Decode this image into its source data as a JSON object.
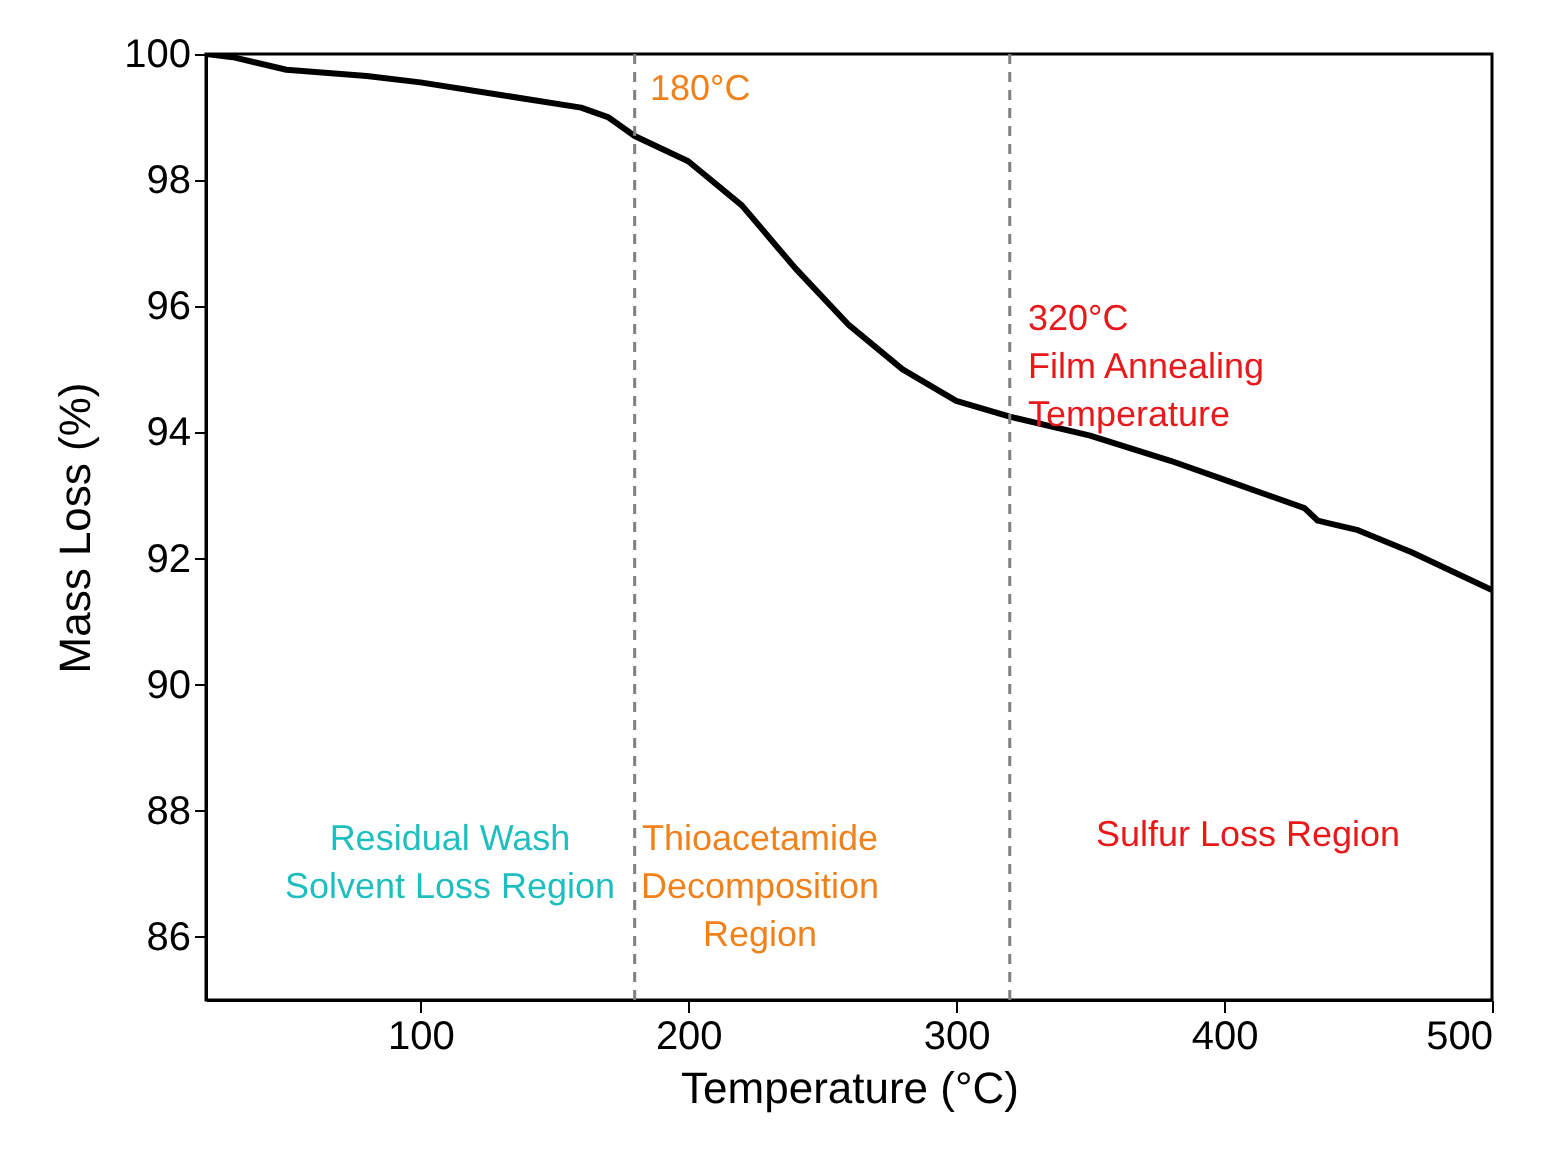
{
  "chart_data": {
    "type": "line",
    "xlabel": "Temperature (°C)",
    "ylabel": "Mass Loss (%)",
    "x": [
      20,
      30,
      50,
      80,
      100,
      130,
      160,
      170,
      180,
      200,
      220,
      240,
      260,
      280,
      300,
      320,
      350,
      380,
      400,
      430,
      435,
      440,
      450,
      470,
      500
    ],
    "series": [
      {
        "color": "#000000",
        "values": [
          100,
          99.95,
          99.75,
          99.65,
          99.55,
          99.35,
          99.15,
          99.0,
          98.7,
          98.3,
          97.6,
          96.6,
          95.7,
          95.0,
          94.5,
          94.25,
          93.95,
          93.55,
          93.25,
          92.8,
          92.6,
          92.55,
          92.45,
          92.1,
          91.5
        ]
      }
    ],
    "xlim": [
      20,
      500
    ],
    "ylim": [
      85,
      100
    ],
    "xticks": [
      100,
      200,
      300,
      400,
      500
    ],
    "yticks": [
      86,
      88,
      90,
      92,
      94,
      96,
      98,
      100
    ],
    "ref_lines": [
      {
        "axis": "x",
        "value": 180,
        "color": "#808080",
        "line_style": "dashed"
      },
      {
        "axis": "x",
        "value": 320,
        "color": "#808080",
        "line_style": "dashed"
      }
    ],
    "annotations": [
      "180°C",
      "320°C\nFilm Annealing\nTemperature",
      "Residual Wash\nSolvent Loss Region",
      "Thioacetamide\nDecomposition\nRegion",
      "Sulfur Loss Region"
    ],
    "marker": "none",
    "line_style": "solid"
  }
}
